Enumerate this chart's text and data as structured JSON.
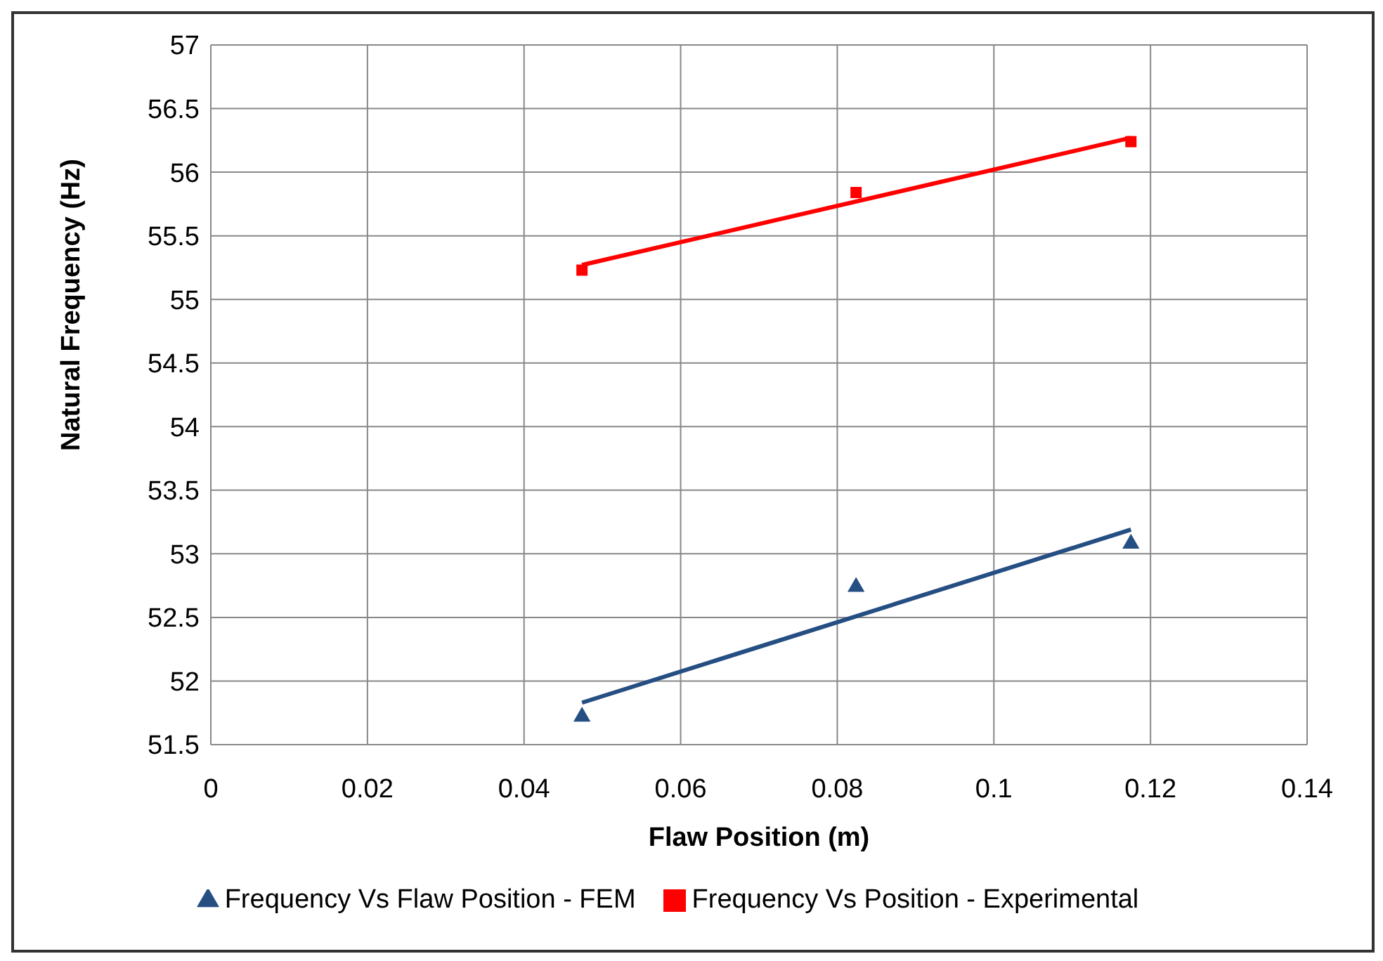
{
  "chart_data": {
    "type": "scatter",
    "xlabel": "Flaw Position (m)",
    "ylabel": "Natural Frequency (Hz)",
    "xlim": [
      0,
      0.14
    ],
    "xticks": [
      0,
      0.02,
      0.04,
      0.06,
      0.08,
      0.1,
      0.12,
      0.14
    ],
    "ylim": [
      51.5,
      57
    ],
    "yticks": [
      51.5,
      52,
      52.5,
      53,
      53.5,
      54,
      54.5,
      55,
      55.5,
      56,
      56.5,
      57
    ],
    "grid": true,
    "legend": "bottom",
    "series": [
      {
        "name": "Frequency Vs Flaw Position - FEM",
        "marker": "triangle",
        "color": "#254e83",
        "x": [
          0.0474,
          0.0824,
          0.1175
        ],
        "values": [
          51.72,
          52.74,
          53.08
        ]
      },
      {
        "name": "Frequency Vs Position - Experimental",
        "marker": "square",
        "color": "#ff0000",
        "x": [
          0.0474,
          0.0824,
          0.1175
        ],
        "values": [
          55.23,
          55.84,
          56.24
        ]
      },
      {
        "type": "line",
        "marker": "none",
        "line_style": "solid",
        "color": "#254e83",
        "x": [
          0.0474,
          0.1175
        ],
        "values": [
          51.83,
          53.19
        ]
      },
      {
        "type": "line",
        "marker": "none",
        "line_style": "solid",
        "color": "#ff0000",
        "x": [
          0.0474,
          0.1175
        ],
        "values": [
          55.27,
          56.27
        ]
      }
    ]
  }
}
